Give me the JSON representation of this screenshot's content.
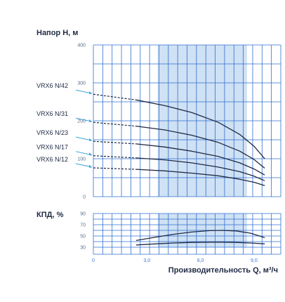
{
  "colors": {
    "grid": "#2f6fd0",
    "band": "#cfe1f4",
    "curve": "#1f2a44",
    "arrow": "#3fa0d8"
  },
  "chart_data": [
    {
      "type": "line",
      "title": "Напор H, м",
      "ylim": [
        0,
        400
      ],
      "yticks": [
        "0",
        "100",
        "200",
        "300",
        "400"
      ],
      "xlim": [
        0,
        10.5
      ],
      "optimal_range": [
        3.6,
        8.6
      ],
      "series": [
        {
          "name": "VRX6 N/42",
          "dashed": {
            "x": [
              0,
              2.4
            ],
            "y": [
              270,
              255
            ]
          },
          "x": [
            2.4,
            4.0,
            5.5,
            7.0,
            8.2,
            9.0,
            9.6
          ],
          "y": [
            255,
            240,
            222,
            196,
            164,
            133,
            100
          ]
        },
        {
          "name": "VRX6 N/31",
          "dashed": {
            "x": [
              0,
              2.4
            ],
            "y": [
              196,
              186
            ]
          },
          "x": [
            2.4,
            4.0,
            5.5,
            7.0,
            8.2,
            9.0,
            9.6
          ],
          "y": [
            186,
            176,
            162,
            143,
            120,
            98,
            75
          ]
        },
        {
          "name": "VRX6 N/23",
          "dashed": {
            "x": [
              0,
              2.4
            ],
            "y": [
              146,
              139
            ]
          },
          "x": [
            2.4,
            4.0,
            5.5,
            7.0,
            8.2,
            9.0,
            9.6
          ],
          "y": [
            139,
            131,
            120,
            106,
            89,
            73,
            57
          ]
        },
        {
          "name": "VRX6 N/17",
          "dashed": {
            "x": [
              0,
              2.4
            ],
            "y": [
              108,
              102
            ]
          },
          "x": [
            2.4,
            4.0,
            5.5,
            7.0,
            8.2,
            9.0,
            9.6
          ],
          "y": [
            102,
            97,
            89,
            78,
            66,
            54,
            42
          ]
        },
        {
          "name": "VRX6 N/12",
          "dashed": {
            "x": [
              0,
              2.4
            ],
            "y": [
              76,
              72
            ]
          },
          "x": [
            2.4,
            4.0,
            5.5,
            7.0,
            8.2,
            9.0,
            9.6
          ],
          "y": [
            72,
            68,
            62,
            55,
            46,
            38,
            29
          ]
        }
      ]
    },
    {
      "type": "line",
      "title": "КПД, %",
      "ylim": [
        30,
        90
      ],
      "yticks": [
        "30",
        "50",
        "70",
        "90"
      ],
      "xlim": [
        0,
        10.5
      ],
      "xticks": [
        {
          "v": 0,
          "label": "0"
        },
        {
          "v": 3,
          "label": "3,0"
        },
        {
          "v": 6,
          "label": "6,0"
        },
        {
          "v": 9,
          "label": "9,0"
        }
      ],
      "xlabel": "Производительность Q, м³/ч",
      "optimal_range": [
        3.6,
        8.6
      ],
      "series": [
        {
          "x": [
            2.4,
            3.5,
            4.5,
            5.5,
            6.5,
            7.2,
            8.0,
            8.8,
            9.6
          ],
          "y": [
            42,
            48,
            53,
            57,
            59.5,
            60,
            59,
            55,
            47
          ]
        },
        {
          "x": [
            2.4,
            3.5,
            4.5,
            5.5,
            6.5,
            7.2,
            8.0,
            8.8,
            9.6
          ],
          "y": [
            34,
            36,
            37.5,
            38.5,
            39,
            39,
            38.5,
            37.5,
            36
          ]
        }
      ]
    }
  ]
}
